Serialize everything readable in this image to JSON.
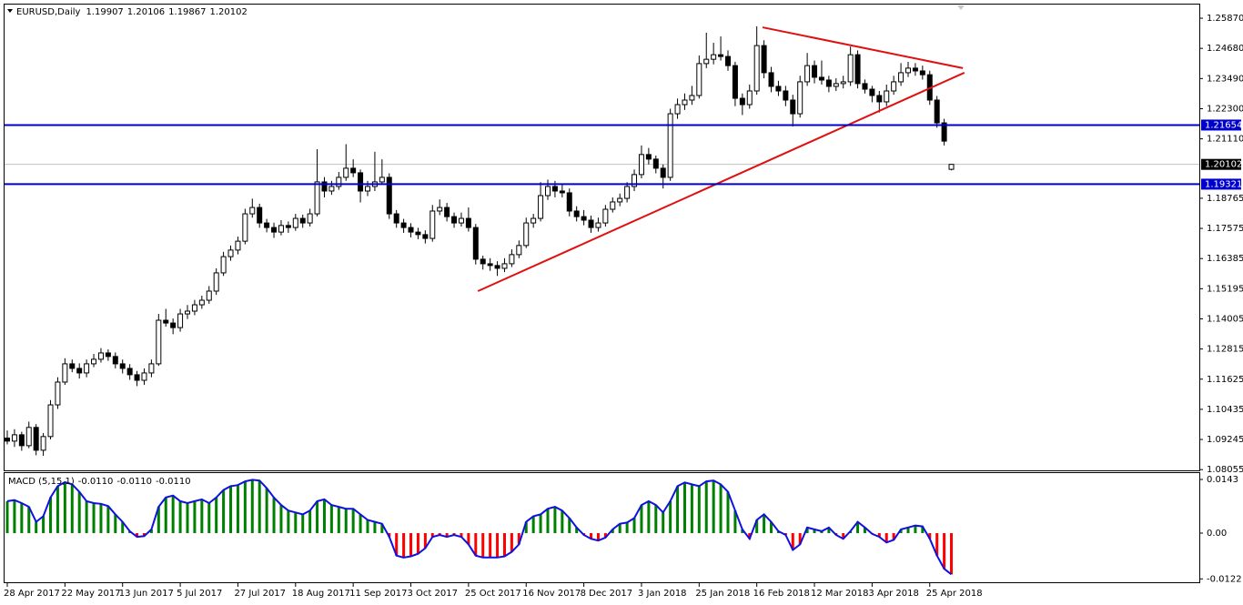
{
  "chart_data": [
    {
      "type": "candlestick",
      "title": "EURUSD,Daily",
      "categories": [
        "28 Apr 2017",
        null,
        null,
        null,
        null,
        null,
        null,
        null,
        "22 May 2017",
        null,
        null,
        null,
        null,
        null,
        null,
        null,
        "13 Jun 2017",
        null,
        null,
        null,
        null,
        null,
        null,
        null,
        "5 Jul 2017",
        null,
        null,
        null,
        null,
        null,
        null,
        null,
        "27 Jul 2017",
        null,
        null,
        null,
        null,
        null,
        null,
        null,
        "18 Aug 2017",
        null,
        null,
        null,
        null,
        null,
        null,
        null,
        "11 Sep 2017",
        null,
        null,
        null,
        null,
        null,
        null,
        null,
        "3 Oct 2017",
        null,
        null,
        null,
        null,
        null,
        null,
        null,
        "25 Oct 2017",
        null,
        null,
        null,
        null,
        null,
        null,
        null,
        "16 Nov 2017",
        null,
        null,
        null,
        null,
        null,
        null,
        null,
        "8 Dec 2017",
        null,
        null,
        null,
        null,
        null,
        null,
        null,
        "3 Jan 2018",
        null,
        null,
        null,
        null,
        null,
        null,
        null,
        "25 Jan 2018",
        null,
        null,
        null,
        null,
        null,
        null,
        null,
        "16 Feb 2018",
        null,
        null,
        null,
        null,
        null,
        null,
        null,
        "12 Mar 2018",
        null,
        null,
        null,
        null,
        null,
        null,
        null,
        "3 Apr 2018",
        null,
        null,
        null,
        null,
        null,
        null,
        null,
        "25 Apr 2018",
        null,
        null,
        null
      ],
      "candles": [
        [
          1.093,
          1.096,
          1.0905,
          1.0918
        ],
        [
          1.0918,
          1.0965,
          1.0895,
          1.0943
        ],
        [
          1.0943,
          1.0955,
          1.088,
          1.09
        ],
        [
          1.09,
          1.0995,
          1.089,
          1.0972
        ],
        [
          1.0972,
          1.0985,
          1.0862,
          1.0882
        ],
        [
          1.0882,
          1.095,
          1.086,
          1.0936
        ],
        [
          1.0936,
          1.108,
          1.0925,
          1.1061
        ],
        [
          1.1061,
          1.117,
          1.1045,
          1.1151
        ],
        [
          1.1151,
          1.1245,
          1.114,
          1.1223
        ],
        [
          1.1223,
          1.124,
          1.119,
          1.1205
        ],
        [
          1.1205,
          1.1225,
          1.1165,
          1.1187
        ],
        [
          1.1187,
          1.124,
          1.117,
          1.1223
        ],
        [
          1.1223,
          1.1262,
          1.121,
          1.1241
        ],
        [
          1.1241,
          1.1285,
          1.1228,
          1.1266
        ],
        [
          1.1266,
          1.128,
          1.1235,
          1.1252
        ],
        [
          1.1252,
          1.1268,
          1.1205,
          1.1223
        ],
        [
          1.1223,
          1.124,
          1.1185,
          1.1205
        ],
        [
          1.1205,
          1.1222,
          1.116,
          1.118
        ],
        [
          1.118,
          1.1195,
          1.1135,
          1.1158
        ],
        [
          1.1158,
          1.1205,
          1.114,
          1.1187
        ],
        [
          1.1187,
          1.124,
          1.117,
          1.1223
        ],
        [
          1.1223,
          1.142,
          1.1215,
          1.1395
        ],
        [
          1.1395,
          1.144,
          1.137,
          1.1384
        ],
        [
          1.1384,
          1.1402,
          1.134,
          1.1366
        ],
        [
          1.1366,
          1.144,
          1.135,
          1.142
        ],
        [
          1.142,
          1.1455,
          1.14,
          1.1431
        ],
        [
          1.1431,
          1.1475,
          1.1415,
          1.1456
        ],
        [
          1.1456,
          1.1492,
          1.144,
          1.1474
        ],
        [
          1.1474,
          1.153,
          1.146,
          1.151
        ],
        [
          1.151,
          1.16,
          1.1495,
          1.1582
        ],
        [
          1.1582,
          1.1665,
          1.157,
          1.1646
        ],
        [
          1.1646,
          1.169,
          1.163,
          1.1672
        ],
        [
          1.1672,
          1.1725,
          1.1655,
          1.1707
        ],
        [
          1.1707,
          1.1835,
          1.1695,
          1.1815
        ],
        [
          1.1815,
          1.1875,
          1.18,
          1.184
        ],
        [
          1.184,
          1.1855,
          1.176,
          1.1779
        ],
        [
          1.1779,
          1.1795,
          1.1742,
          1.1761
        ],
        [
          1.1761,
          1.178,
          1.172,
          1.1743
        ],
        [
          1.1743,
          1.179,
          1.173,
          1.1769
        ],
        [
          1.1769,
          1.1785,
          1.174,
          1.1761
        ],
        [
          1.1761,
          1.1815,
          1.1748,
          1.1797
        ],
        [
          1.1797,
          1.1812,
          1.176,
          1.1779
        ],
        [
          1.1779,
          1.1835,
          1.1765,
          1.1815
        ],
        [
          1.1815,
          1.207,
          1.1805,
          1.1941
        ],
        [
          1.1941,
          1.196,
          1.188,
          1.1905
        ],
        [
          1.1905,
          1.1945,
          1.189,
          1.1923
        ],
        [
          1.1923,
          1.198,
          1.191,
          1.1959
        ],
        [
          1.1959,
          1.209,
          1.1945,
          1.1995
        ],
        [
          1.1995,
          1.203,
          1.196,
          1.1977
        ],
        [
          1.1977,
          1.199,
          1.186,
          1.1905
        ],
        [
          1.1905,
          1.1945,
          1.1885,
          1.1923
        ],
        [
          1.1923,
          1.206,
          1.1905,
          1.1941
        ],
        [
          1.1941,
          1.203,
          1.193,
          1.1959
        ],
        [
          1.1959,
          1.1975,
          1.1795,
          1.1815
        ],
        [
          1.1815,
          1.183,
          1.176,
          1.1779
        ],
        [
          1.1779,
          1.1795,
          1.174,
          1.1761
        ],
        [
          1.1761,
          1.1778,
          1.1722,
          1.1743
        ],
        [
          1.1743,
          1.176,
          1.1715,
          1.1733
        ],
        [
          1.1733,
          1.175,
          1.1698,
          1.1718
        ],
        [
          1.1718,
          1.185,
          1.1705,
          1.1826
        ],
        [
          1.1826,
          1.1872,
          1.181,
          1.184
        ],
        [
          1.184,
          1.1858,
          1.1785,
          1.1804
        ],
        [
          1.1804,
          1.182,
          1.176,
          1.1779
        ],
        [
          1.1779,
          1.182,
          1.1765,
          1.1797
        ],
        [
          1.1797,
          1.184,
          1.1745,
          1.1761
        ],
        [
          1.1761,
          1.1775,
          1.1615,
          1.1636
        ],
        [
          1.1636,
          1.165,
          1.1595,
          1.1618
        ],
        [
          1.1618,
          1.164,
          1.159,
          1.1611
        ],
        [
          1.1611,
          1.1628,
          1.157,
          1.16
        ],
        [
          1.16,
          1.164,
          1.1585,
          1.1618
        ],
        [
          1.1618,
          1.1675,
          1.1605,
          1.1654
        ],
        [
          1.1654,
          1.171,
          1.164,
          1.169
        ],
        [
          1.169,
          1.18,
          1.168,
          1.1779
        ],
        [
          1.1779,
          1.1815,
          1.176,
          1.1797
        ],
        [
          1.1797,
          1.194,
          1.1785,
          1.1887
        ],
        [
          1.1887,
          1.195,
          1.187,
          1.1923
        ],
        [
          1.1923,
          1.1945,
          1.188,
          1.1905
        ],
        [
          1.1905,
          1.1935,
          1.188,
          1.1898
        ],
        [
          1.1898,
          1.1915,
          1.1805,
          1.1826
        ],
        [
          1.1826,
          1.1845,
          1.1785,
          1.1804
        ],
        [
          1.1804,
          1.183,
          1.177,
          1.179
        ],
        [
          1.179,
          1.1808,
          1.174,
          1.1761
        ],
        [
          1.1761,
          1.18,
          1.1745,
          1.1779
        ],
        [
          1.1779,
          1.185,
          1.1765,
          1.1833
        ],
        [
          1.1833,
          1.188,
          1.182,
          1.1862
        ],
        [
          1.1862,
          1.1895,
          1.1845,
          1.1876
        ],
        [
          1.1876,
          1.194,
          1.186,
          1.1923
        ],
        [
          1.1923,
          1.199,
          1.1905,
          1.197
        ],
        [
          1.197,
          1.2085,
          1.1955,
          1.2049
        ],
        [
          1.2049,
          1.2075,
          1.201,
          1.2031
        ],
        [
          1.2031,
          1.2045,
          1.1975,
          1.1995
        ],
        [
          1.1995,
          1.201,
          1.1915,
          1.1959
        ],
        [
          1.1959,
          1.223,
          1.1945,
          1.221
        ],
        [
          1.221,
          1.227,
          1.219,
          1.2246
        ],
        [
          1.2246,
          1.229,
          1.2225,
          1.2264
        ],
        [
          1.2264,
          1.232,
          1.2245,
          1.2282
        ],
        [
          1.2282,
          1.244,
          1.227,
          1.2408
        ],
        [
          1.2408,
          1.253,
          1.239,
          1.2425
        ],
        [
          1.2425,
          1.249,
          1.2405,
          1.2443
        ],
        [
          1.2443,
          1.2515,
          1.242,
          1.2436
        ],
        [
          1.2436,
          1.246,
          1.238,
          1.24
        ],
        [
          1.24,
          1.2415,
          1.224,
          1.2271
        ],
        [
          1.2271,
          1.229,
          1.2205,
          1.2246
        ],
        [
          1.2246,
          1.2325,
          1.223,
          1.23
        ],
        [
          1.23,
          1.2555,
          1.2285,
          1.2479
        ],
        [
          1.2479,
          1.25,
          1.235,
          1.2372
        ],
        [
          1.2372,
          1.2395,
          1.2295,
          1.2318
        ],
        [
          1.2318,
          1.234,
          1.228,
          1.23
        ],
        [
          1.23,
          1.232,
          1.224,
          1.2264
        ],
        [
          1.2264,
          1.2285,
          1.216,
          1.221
        ],
        [
          1.221,
          1.236,
          1.2195,
          1.2336
        ],
        [
          1.2336,
          1.245,
          1.232,
          1.24
        ],
        [
          1.24,
          1.242,
          1.233,
          1.2354
        ],
        [
          1.2354,
          1.242,
          1.2325,
          1.2343
        ],
        [
          1.2343,
          1.236,
          1.2295,
          1.2318
        ],
        [
          1.2318,
          1.235,
          1.23,
          1.2329
        ],
        [
          1.2329,
          1.236,
          1.231,
          1.2336
        ],
        [
          1.2336,
          1.2475,
          1.232,
          1.2443
        ],
        [
          1.2443,
          1.246,
          1.231,
          1.2329
        ],
        [
          1.2329,
          1.2345,
          1.229,
          1.2307
        ],
        [
          1.2307,
          1.232,
          1.2255,
          1.2282
        ],
        [
          1.2282,
          1.23,
          1.2215,
          1.2257
        ],
        [
          1.2257,
          1.2325,
          1.224,
          1.23
        ],
        [
          1.23,
          1.236,
          1.2285,
          1.2336
        ],
        [
          1.2336,
          1.241,
          1.232,
          1.2372
        ],
        [
          1.2372,
          1.2415,
          1.2355,
          1.239
        ],
        [
          1.239,
          1.241,
          1.236,
          1.2379
        ],
        [
          1.2379,
          1.24,
          1.2345,
          1.2364
        ],
        [
          1.2364,
          1.238,
          1.2245,
          1.2264
        ],
        [
          1.2264,
          1.228,
          1.2155,
          1.2174
        ],
        [
          1.2174,
          1.219,
          1.2085,
          1.2102
        ],
        [
          1.19907,
          1.20106,
          1.19867,
          1.20102
        ]
      ],
      "ylim": [
        1.0799,
        1.2641
      ],
      "yticks": [
        1.2587,
        1.2468,
        1.2349,
        1.223,
        1.2111,
        1.18765,
        1.17575,
        1.16385,
        1.15195,
        1.14005,
        1.12815,
        1.11625,
        1.10435,
        1.09245,
        1.08055
      ],
      "ytick_labels": [
        "1.25870",
        "1.24680",
        "1.23490",
        "1.22300",
        "1.21110",
        "1.18765",
        "1.17575",
        "1.16385",
        "1.15195",
        "1.14005",
        "1.12815",
        "1.11625",
        "1.10435",
        "1.09245",
        "1.08055"
      ],
      "levels": [
        {
          "value": 1.21654,
          "color": "#0000cc"
        },
        {
          "value": 1.19321,
          "color": "#0000cc"
        }
      ],
      "last_price_color": "#c0c0c0",
      "trendlines": [
        {
          "x": [
            65.3,
            132.8
          ],
          "y": [
            1.151,
            1.2372
          ],
          "color": "#e01010"
        },
        {
          "x": [
            104.8,
            132.6
          ],
          "y": [
            1.2551,
            1.239
          ],
          "color": "#e01010"
        }
      ],
      "bull_color": "#ffffff",
      "bear_color": "#000000"
    },
    {
      "type": "macd",
      "title": "MACD (5,15,1)",
      "values": [
        0.0085,
        0.0088,
        0.008,
        0.007,
        0.003,
        0.0045,
        0.0095,
        0.0125,
        0.0136,
        0.013,
        0.011,
        0.0085,
        0.008,
        0.0078,
        0.0072,
        0.005,
        0.003,
        0.0005,
        -0.001,
        -0.0008,
        0.001,
        0.007,
        0.0095,
        0.01,
        0.0085,
        0.008,
        0.0085,
        0.009,
        0.008,
        0.0095,
        0.0115,
        0.0125,
        0.0128,
        0.0138,
        0.0142,
        0.014,
        0.012,
        0.0095,
        0.0075,
        0.006,
        0.0055,
        0.005,
        0.006,
        0.0085,
        0.009,
        0.0075,
        0.007,
        0.0065,
        0.0065,
        0.005,
        0.0035,
        0.003,
        0.0025,
        -0.001,
        -0.006,
        -0.0065,
        -0.0062,
        -0.0055,
        -0.004,
        -0.001,
        -0.0005,
        -0.001,
        -0.0005,
        -0.001,
        -0.003,
        -0.006,
        -0.0065,
        -0.0065,
        -0.0065,
        -0.0062,
        -0.005,
        -0.003,
        0.003,
        0.0045,
        0.005,
        0.0065,
        0.007,
        0.006,
        0.004,
        0.0015,
        -0.0005,
        -0.0015,
        -0.002,
        -0.0012,
        0.001,
        0.0025,
        0.0028,
        0.004,
        0.0075,
        0.0085,
        0.0075,
        0.0055,
        0.0085,
        0.0125,
        0.0135,
        0.013,
        0.0125,
        0.0138,
        0.014,
        0.013,
        0.011,
        0.006,
        0.001,
        -0.0015,
        0.0035,
        0.005,
        0.003,
        0.0005,
        -0.0005,
        -0.0045,
        -0.003,
        0.0015,
        0.001,
        0.0005,
        0.0015,
        -0.0005,
        -0.0015,
        0.0005,
        0.003,
        0.0015,
        -0.0002,
        -0.001,
        -0.0025,
        -0.0018,
        0.001,
        0.0015,
        0.002,
        0.0018,
        -0.0015,
        -0.006,
        -0.0095,
        -0.011
      ],
      "readout": [
        "-0.0110",
        "-0.0110",
        "-0.0110"
      ],
      "ylim": [
        -0.0131,
        0.016
      ],
      "yticks": [
        0.0143,
        {
          "value": 0,
          "label": "0.00"
        },
        -0.0122
      ],
      "up_color": "#008000",
      "down_color": "#ff0000",
      "line_color": "#1010e0"
    }
  ]
}
